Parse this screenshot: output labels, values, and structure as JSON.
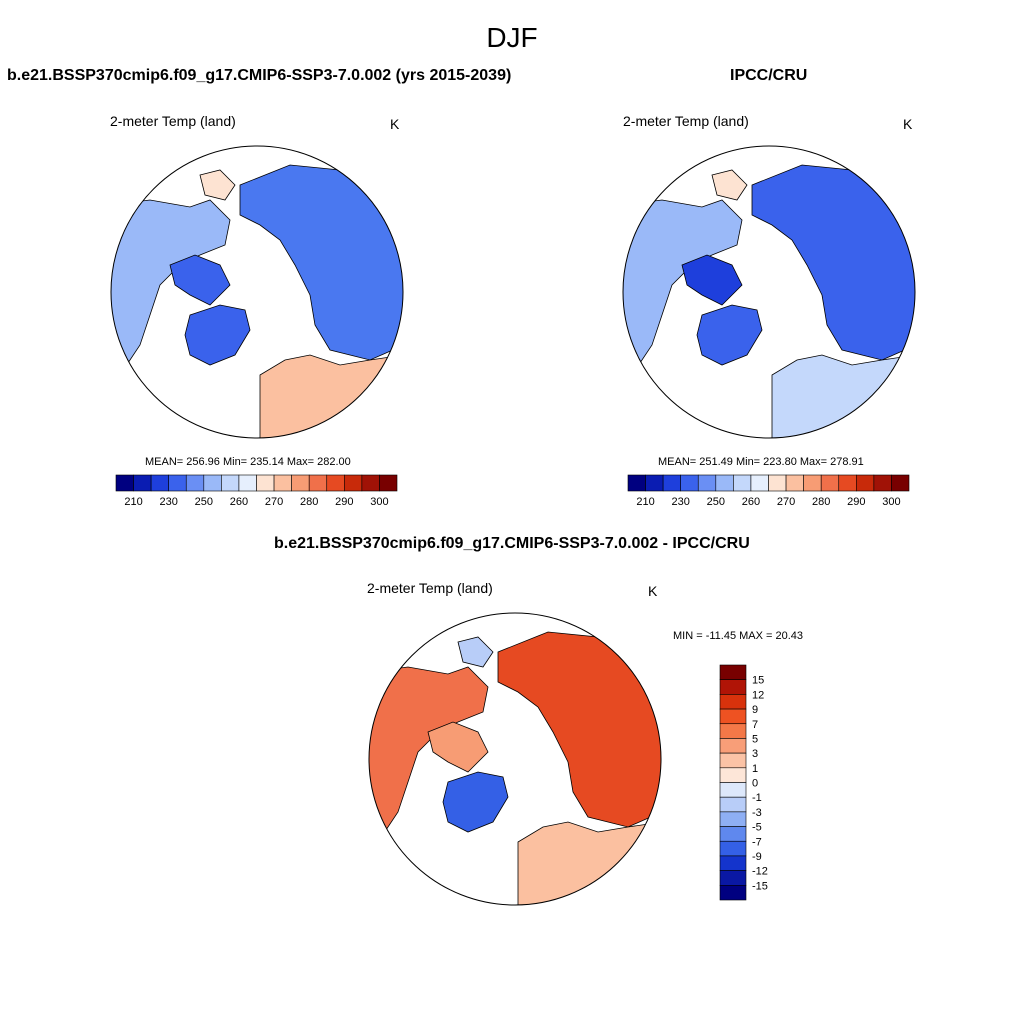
{
  "season": "DJF",
  "panels": {
    "model": {
      "title": "b.e21.BSSP370cmip6.f09_g17.CMIP6-SSP3-7.0.002 (yrs 2015-2039)",
      "left_label": "2-meter Temp (land)",
      "right_label": "K",
      "stats": "MEAN= 256.96  Min= 235.14  Max= 282.00",
      "mean": 256.96,
      "min": 235.14,
      "max": 282.0
    },
    "obs": {
      "title": "IPCC/CRU",
      "left_label": "2-meter Temp (land)",
      "right_label": "K",
      "stats": "MEAN= 251.49  Min= 223.80  Max= 278.91",
      "mean": 251.49,
      "min": 223.8,
      "max": 278.91
    },
    "diff": {
      "title": "b.e21.BSSP370cmip6.f09_g17.CMIP6-SSP3-7.0.002 - IPCC/CRU",
      "left_label": "2-meter Temp (land)",
      "right_label": "K",
      "stats": "MIN = -11.45 MAX =  20.43",
      "min": -11.45,
      "max": 20.43
    }
  },
  "abs_colorbar": {
    "tick_labels": [
      "210",
      "230",
      "250",
      "260",
      "270",
      "280",
      "290",
      "300"
    ],
    "colors": [
      "#000080",
      "#0a1cb2",
      "#1e3fdc",
      "#3a62ec",
      "#6a8ff4",
      "#9ab9f8",
      "#c4d8fb",
      "#e6effd",
      "#fde3d2",
      "#fbc0a0",
      "#f79c74",
      "#f0704a",
      "#e64a22",
      "#c82a0a",
      "#a01206",
      "#780000"
    ]
  },
  "diff_colorbar": {
    "labels": [
      "15",
      "12",
      "9",
      "7",
      "5",
      "3",
      "1",
      "0",
      "-1",
      "-3",
      "-5",
      "-7",
      "-9",
      "-12",
      "-15"
    ],
    "colors": [
      "#780000",
      "#b01406",
      "#d8320c",
      "#ee5222",
      "#f47848",
      "#f89e78",
      "#fbc3a6",
      "#fde6d8",
      "#dde8fb",
      "#b8cdf8",
      "#8eaff4",
      "#5f88ee",
      "#3460e6",
      "#1434cc",
      "#0a18a4",
      "#000080"
    ]
  },
  "legend_words": {
    "pole": "North Pole",
    "panel_model_map": "model-map",
    "panel_obs_map": "obs-map",
    "panel_diff_map": "diff-map"
  }
}
